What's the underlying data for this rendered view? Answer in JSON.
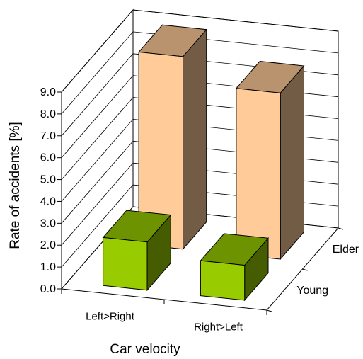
{
  "chart_data": {
    "type": "bar",
    "subtype": "3d-bar",
    "title": "",
    "xlabel": "Car velocity",
    "ylabel": "Rate of accidents [%]",
    "ylim": [
      0,
      9.0
    ],
    "yticks": [
      "0.0",
      "1.0",
      "2.0",
      "3.0",
      "4.0",
      "5.0",
      "6.0",
      "7.0",
      "8.0",
      "9.0"
    ],
    "categories": [
      "Left>Right",
      "Right>Left"
    ],
    "series": [
      {
        "name": "Young",
        "values": [
          2.2,
          1.6
        ],
        "color": "#99cc00"
      },
      {
        "name": "Elder",
        "values": [
          8.8,
          7.6
        ],
        "color": "#ffcc99"
      }
    ],
    "grid": true
  }
}
